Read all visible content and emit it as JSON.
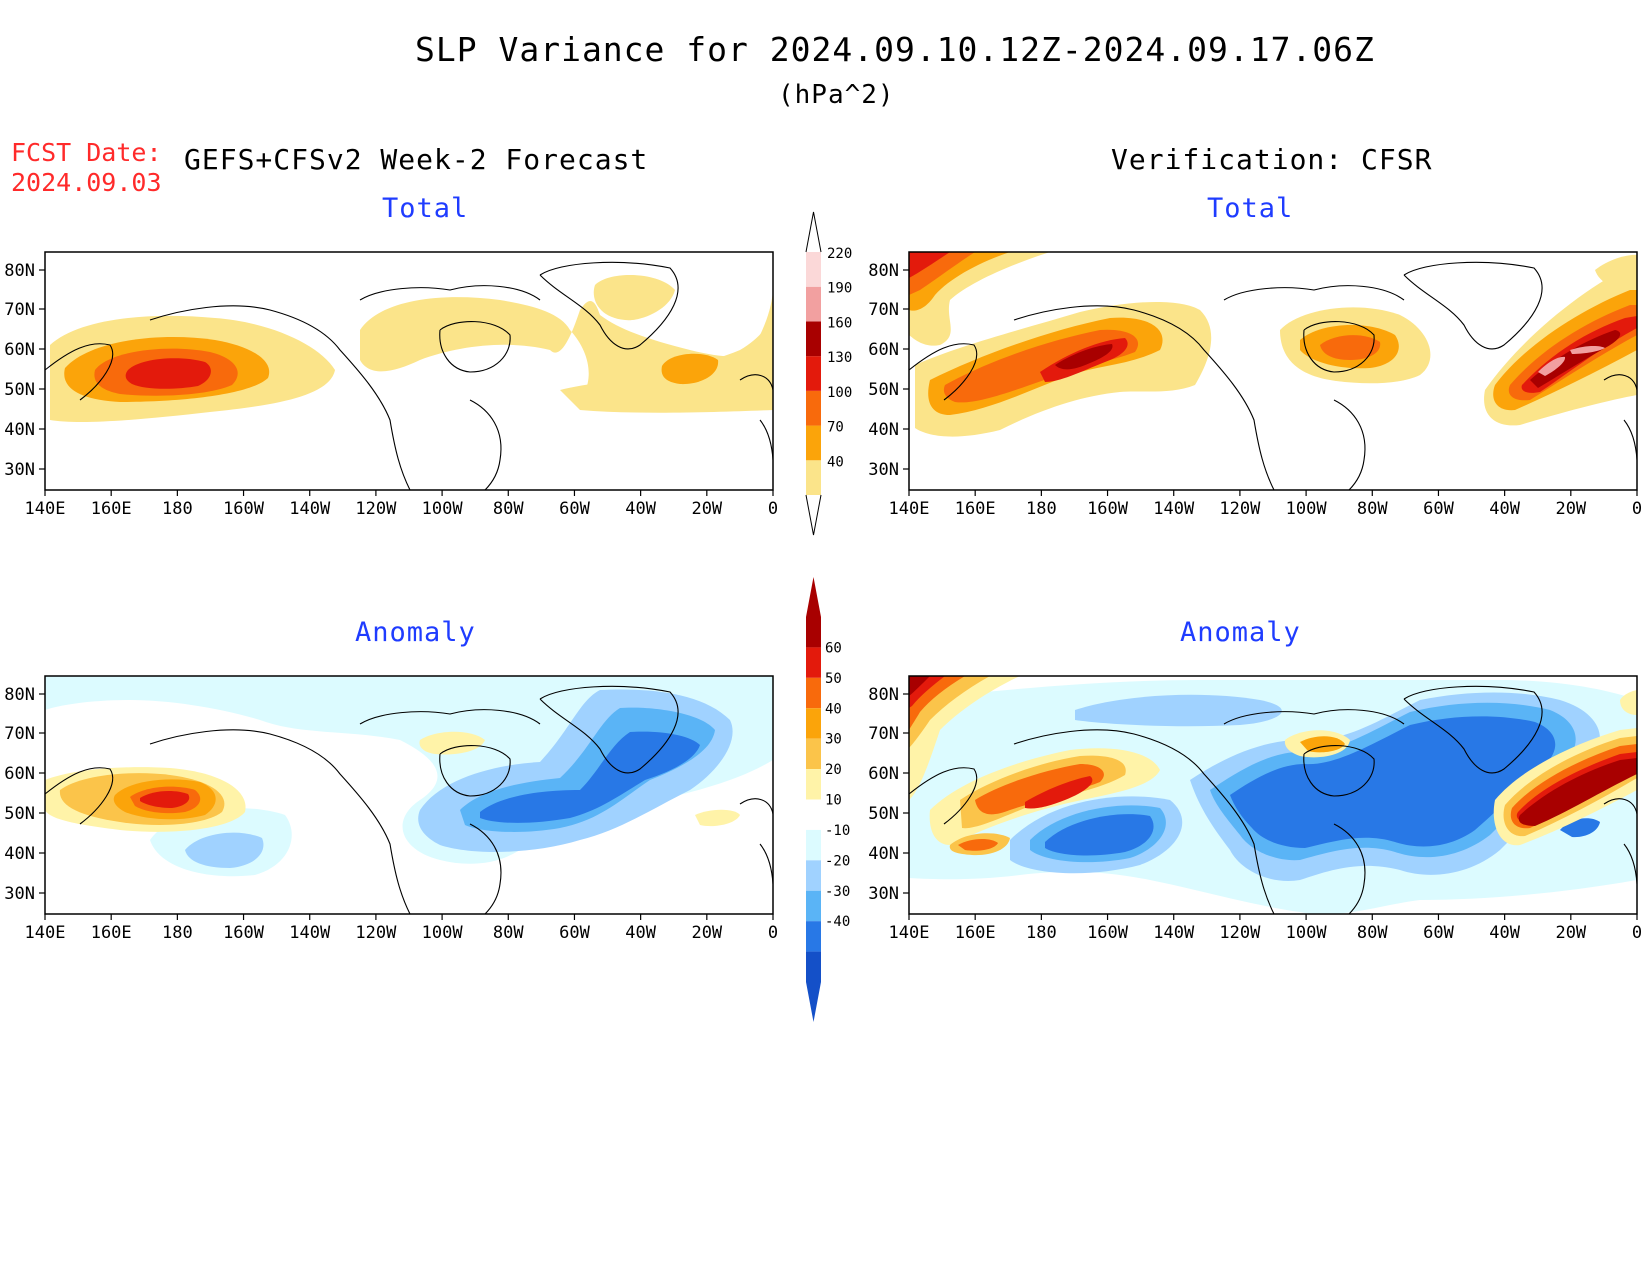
{
  "title": "SLP Variance for 2024.09.10.12Z-2024.09.17.06Z",
  "units": "(hPa^2)",
  "fcst_date_label": "FCST Date:",
  "fcst_date_value": "2024.09.03",
  "left_header": "GEFS+CFSv2 Week-2 Forecast",
  "right_header": "Verification: CFSR",
  "panels": {
    "fc_total": {
      "subtitle": "Total"
    },
    "ver_total": {
      "subtitle": "Total"
    },
    "fc_anom": {
      "subtitle": "Anomaly"
    },
    "ver_anom": {
      "subtitle": "Anomaly"
    }
  },
  "lat_labels": [
    "80N",
    "70N",
    "60N",
    "50N",
    "40N",
    "30N"
  ],
  "lon_labels": [
    "140E",
    "160E",
    "180",
    "160W",
    "140W",
    "120W",
    "100W",
    "80W",
    "60W",
    "40W",
    "20W",
    "0"
  ],
  "total_colorbar": {
    "levels": [
      "40",
      "70",
      "100",
      "130",
      "160",
      "190",
      "220"
    ],
    "colors": [
      "#fbe48a",
      "#fba40a",
      "#f86a0c",
      "#e31a0c",
      "#a80000",
      "#f2a0a0",
      "#fbd8d8"
    ]
  },
  "anomaly_colorbar": {
    "levels": [
      "60",
      "50",
      "40",
      "30",
      "20",
      "10",
      "-10",
      "-20",
      "-30",
      "-40"
    ],
    "colors": [
      "#a80000",
      "#e31a0c",
      "#f86a0c",
      "#fba40a",
      "#fbc44a",
      "#fff3a8",
      "#ffffff",
      "#dcfbff",
      "#a0d2ff",
      "#5ab4f6",
      "#2878e6",
      "#1450c8"
    ]
  },
  "colors": {
    "subtitle": "#1f3cff",
    "fcst_date": "#ff2a2a"
  }
}
